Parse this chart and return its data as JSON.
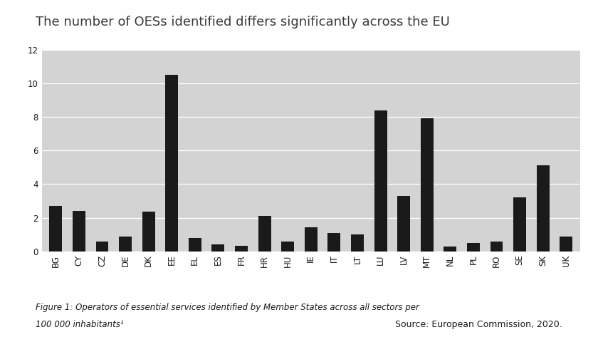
{
  "title": "The number of OESs identified differs significantly across the EU",
  "categories": [
    "BG",
    "CY",
    "CZ",
    "DE",
    "DK",
    "EE",
    "EL",
    "ES",
    "FR",
    "HR",
    "HU",
    "IE",
    "IT",
    "LT",
    "LU",
    "LV",
    "MT",
    "NL",
    "PL",
    "RO",
    "SE",
    "SK",
    "UK"
  ],
  "values": [
    2.7,
    2.4,
    0.6,
    0.9,
    2.35,
    10.5,
    0.8,
    0.4,
    0.35,
    2.1,
    0.6,
    1.45,
    1.1,
    1.0,
    8.4,
    3.3,
    7.9,
    0.3,
    0.5,
    0.6,
    3.2,
    5.1,
    0.9
  ],
  "bar_color": "#1a1a1a",
  "chart_bg_color": "#d3d3d3",
  "fig_bg_color": "#ffffff",
  "ylim": [
    0,
    12
  ],
  "yticks": [
    0,
    2,
    4,
    6,
    8,
    10,
    12
  ],
  "caption_line1": "Figure 1: Operators of essential services identified by Member States across all sectors per",
  "caption_line2": "100 000 inhabitants¹",
  "source_text": "Source: European Commission, 2020.",
  "title_fontsize": 13,
  "tick_fontsize": 8.5,
  "caption_fontsize": 8.5,
  "source_fontsize": 9,
  "title_color": "#3a3a3a",
  "text_color": "#1a1a1a"
}
